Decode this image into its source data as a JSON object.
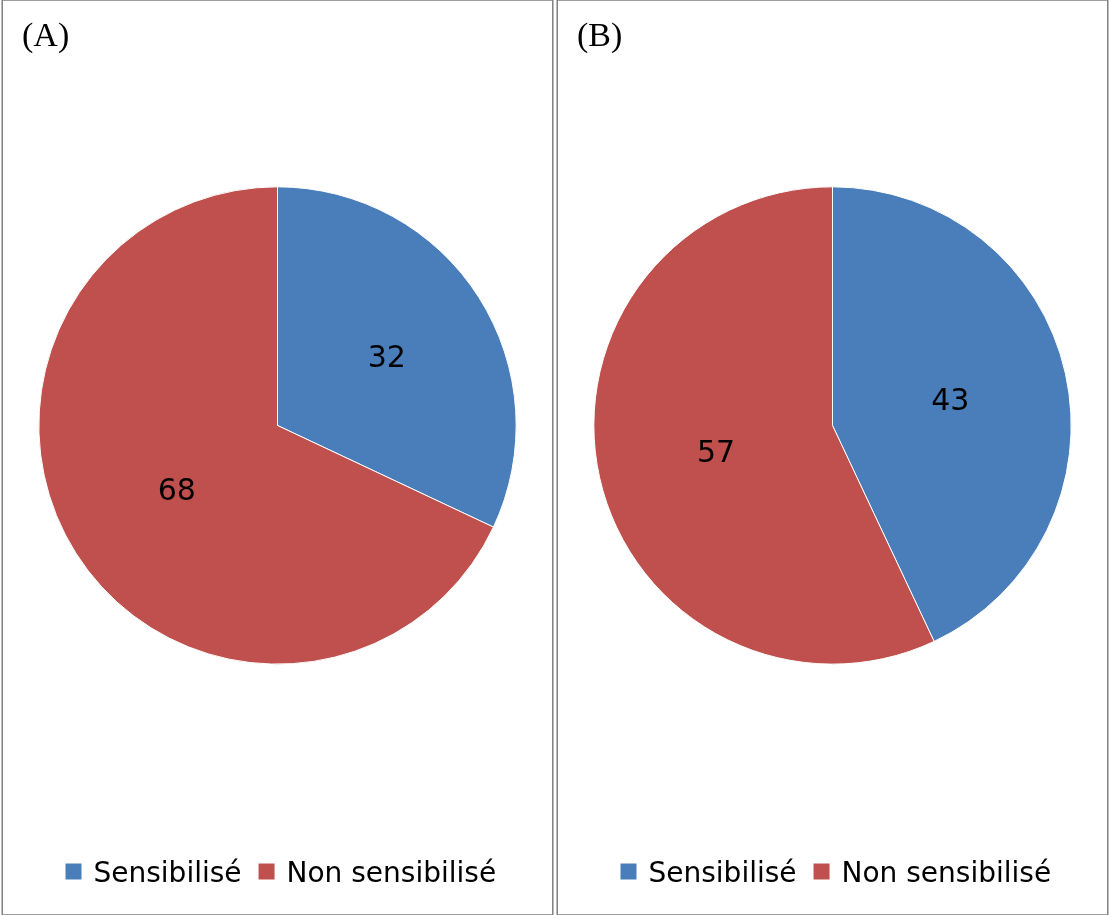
{
  "chart_data": [
    {
      "type": "pie",
      "title": "(A)",
      "categories": [
        "Sensibilisé",
        "Non sensibilisé"
      ],
      "values": [
        32,
        68
      ],
      "colors": [
        "#4a7ebb",
        "#c0504d"
      ],
      "data_labels": true,
      "legend": "bottom"
    },
    {
      "type": "pie",
      "title": "(B)",
      "categories": [
        "Sensibilisé",
        "Non sensibilisé"
      ],
      "values": [
        43,
        57
      ],
      "colors": [
        "#4a7ebb",
        "#c0504d"
      ],
      "data_labels": true,
      "legend": "bottom"
    }
  ]
}
